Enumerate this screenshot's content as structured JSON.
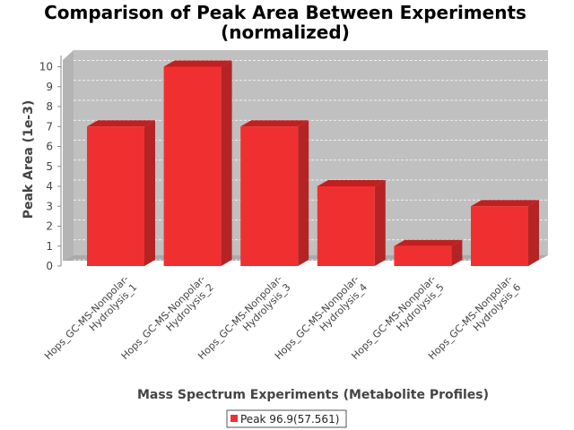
{
  "chart_data": {
    "type": "bar",
    "title_lines": [
      "Comparison of Peak Area Between Experiments",
      "(normalized)"
    ],
    "xlabel": "Mass Spectrum Experiments (Metabolite Profiles)",
    "ylabel": "Peak Area (1e-3)",
    "ylim": [
      0,
      10.5
    ],
    "yticks": [
      "0",
      "1",
      "2",
      "3",
      "4",
      "5",
      "6",
      "7",
      "8",
      "9",
      "10"
    ],
    "categories": [
      [
        "Hops_GC-MS-Nonpolar-",
        "Hydrolysis_1"
      ],
      [
        "Hops_GC-MS-Nonpolar-",
        "Hydrolysis_2"
      ],
      [
        "Hops_GC-MS-Nonpolar-",
        "Hydrolysis_3"
      ],
      [
        "Hops_GC-MS-Nonpolar-",
        "Hydrolysis_4"
      ],
      [
        "Hops_GC-MS-Nonpolar-",
        "Hydrolysis_5"
      ],
      [
        "Hops_GC-MS-Nonpolar-",
        "Hydrolysis_6"
      ]
    ],
    "series": [
      {
        "name": "Peak 96.9(57.561)",
        "color": "#f03030",
        "values": [
          7.0,
          10.0,
          7.0,
          4.0,
          1.0,
          3.0
        ]
      }
    ],
    "grid": true,
    "legend": "bottom-center",
    "background": "#c0c0c0"
  }
}
